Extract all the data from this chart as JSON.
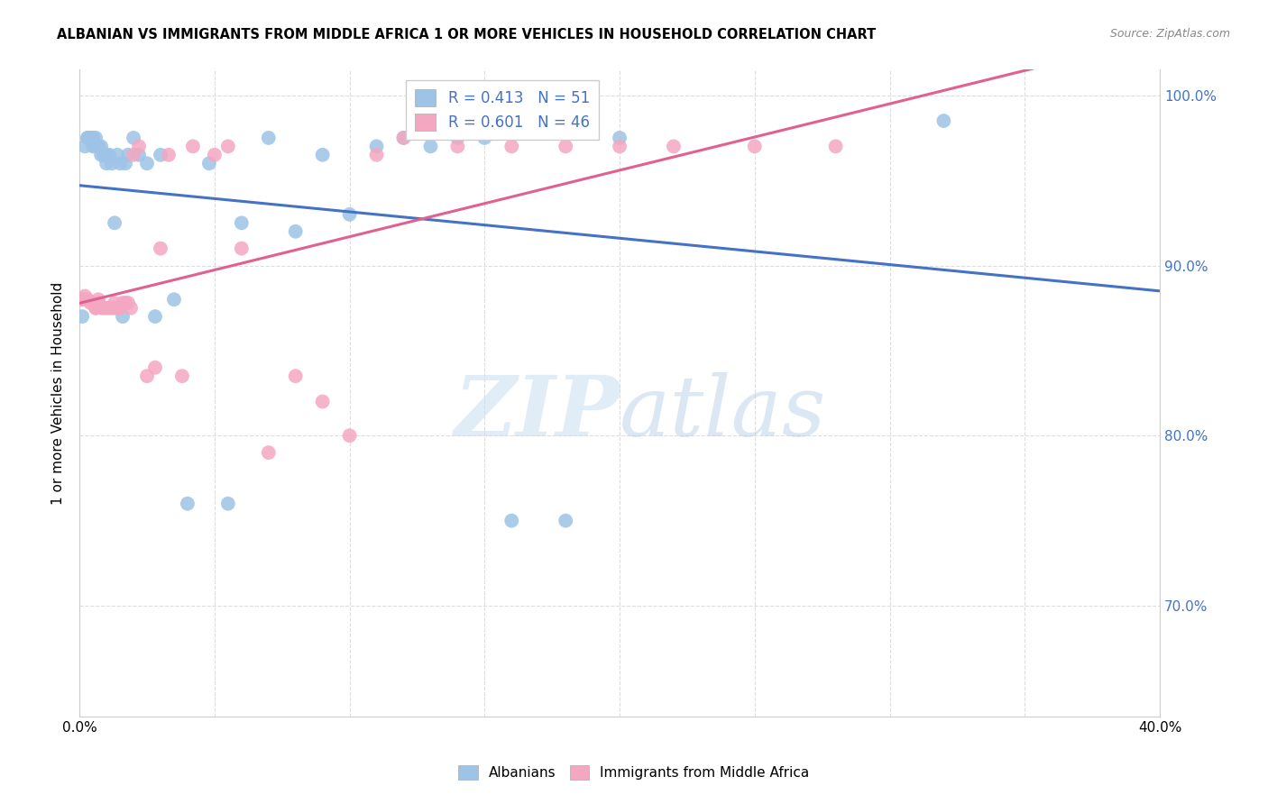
{
  "title": "ALBANIAN VS IMMIGRANTS FROM MIDDLE AFRICA 1 OR MORE VEHICLES IN HOUSEHOLD CORRELATION CHART",
  "source": "Source: ZipAtlas.com",
  "ylabel": "1 or more Vehicles in Household",
  "xmin": 0.0,
  "xmax": 0.4,
  "ymin": 0.635,
  "ymax": 1.015,
  "yticks": [
    0.7,
    0.8,
    0.9,
    1.0
  ],
  "ytick_labels": [
    "70.0%",
    "80.0%",
    "90.0%",
    "100.0%"
  ],
  "legend_labels": [
    "Albanians",
    "Immigrants from Middle Africa"
  ],
  "r_albanian": 0.413,
  "n_albanian": 51,
  "r_immigrant": 0.601,
  "n_immigrant": 46,
  "color_albanian": "#9dc3e6",
  "color_immigrant": "#f4a7c0",
  "line_color_albanian": "#4472c4",
  "line_color_immigrant": "#e06090",
  "watermark_zip": "ZIP",
  "watermark_atlas": "atlas",
  "albanian_x": [
    0.001,
    0.001,
    0.002,
    0.003,
    0.003,
    0.004,
    0.004,
    0.005,
    0.005,
    0.005,
    0.006,
    0.006,
    0.007,
    0.007,
    0.008,
    0.008,
    0.009,
    0.009,
    0.01,
    0.01,
    0.011,
    0.012,
    0.013,
    0.014,
    0.015,
    0.016,
    0.017,
    0.018,
    0.02,
    0.022,
    0.025,
    0.028,
    0.03,
    0.035,
    0.04,
    0.048,
    0.055,
    0.06,
    0.07,
    0.08,
    0.09,
    0.1,
    0.11,
    0.12,
    0.13,
    0.14,
    0.15,
    0.16,
    0.18,
    0.2,
    0.32
  ],
  "albanian_y": [
    0.88,
    0.87,
    0.97,
    0.975,
    0.975,
    0.975,
    0.975,
    0.97,
    0.975,
    0.975,
    0.97,
    0.975,
    0.97,
    0.97,
    0.965,
    0.97,
    0.965,
    0.965,
    0.96,
    0.965,
    0.965,
    0.96,
    0.925,
    0.965,
    0.96,
    0.87,
    0.96,
    0.965,
    0.975,
    0.965,
    0.96,
    0.87,
    0.965,
    0.88,
    0.76,
    0.96,
    0.76,
    0.925,
    0.975,
    0.92,
    0.965,
    0.93,
    0.97,
    0.975,
    0.97,
    0.975,
    0.975,
    0.75,
    0.75,
    0.975,
    0.985
  ],
  "immigrant_x": [
    0.001,
    0.002,
    0.003,
    0.004,
    0.005,
    0.006,
    0.006,
    0.007,
    0.007,
    0.008,
    0.009,
    0.01,
    0.011,
    0.012,
    0.013,
    0.013,
    0.014,
    0.015,
    0.016,
    0.017,
    0.018,
    0.019,
    0.02,
    0.022,
    0.025,
    0.028,
    0.03,
    0.033,
    0.038,
    0.042,
    0.05,
    0.055,
    0.06,
    0.07,
    0.08,
    0.09,
    0.1,
    0.11,
    0.12,
    0.14,
    0.16,
    0.18,
    0.2,
    0.22,
    0.25,
    0.28
  ],
  "immigrant_y": [
    0.88,
    0.882,
    0.88,
    0.878,
    0.878,
    0.875,
    0.875,
    0.878,
    0.88,
    0.875,
    0.875,
    0.875,
    0.875,
    0.875,
    0.878,
    0.875,
    0.875,
    0.875,
    0.878,
    0.878,
    0.878,
    0.875,
    0.965,
    0.97,
    0.835,
    0.84,
    0.91,
    0.965,
    0.835,
    0.97,
    0.965,
    0.97,
    0.91,
    0.79,
    0.835,
    0.82,
    0.8,
    0.965,
    0.975,
    0.97,
    0.97,
    0.97,
    0.97,
    0.97,
    0.97,
    0.97
  ]
}
